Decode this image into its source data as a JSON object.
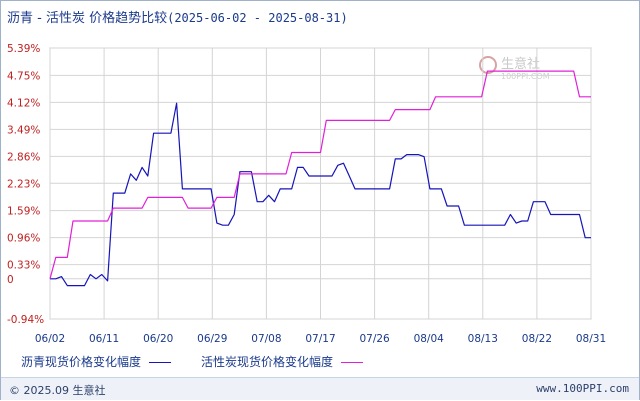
{
  "header": {
    "title": "沥青 - 活性炭 价格趋势比较",
    "range": "(2025-06-02 - 2025-08-31)"
  },
  "watermark": {
    "name": "生意社",
    "url": "100PPI.COM"
  },
  "footer": {
    "copyright": "© 2025.09 生意社",
    "site": "www.100PPI.com"
  },
  "colors": {
    "series1": "#1515b8",
    "series2": "#e020d8",
    "grid": "#cfcfcf",
    "axis_text": "#c02020",
    "xtick_text": "#1a3a8a"
  },
  "chart_data": {
    "type": "line",
    "title": "沥青 - 活性炭 价格趋势比较",
    "ylim": [
      -0.94,
      5.39
    ],
    "ylabel_unit": "%",
    "grid": true,
    "legend_position": "bottom",
    "x_range": [
      "2025-06-02",
      "2025-08-31"
    ],
    "x_ticks": [
      "06/02",
      "06/11",
      "06/20",
      "06/29",
      "07/08",
      "07/17",
      "07/26",
      "08/04",
      "08/13",
      "08/22",
      "08/31"
    ],
    "y_ticks": [
      "5.39%",
      "4.75%",
      "4.12%",
      "3.49%",
      "2.86%",
      "2.23%",
      "1.59%",
      "0.96%",
      "0.33%",
      "0",
      "-0.94%"
    ],
    "y_tick_values": [
      5.39,
      4.75,
      4.12,
      3.49,
      2.86,
      2.23,
      1.59,
      0.96,
      0.33,
      0,
      -0.94
    ],
    "series": [
      {
        "name": "沥青现货价格变化幅度",
        "color": "#1515b8",
        "points": [
          [
            0,
            0
          ],
          [
            1,
            0
          ],
          [
            2,
            0.05
          ],
          [
            3,
            -0.16
          ],
          [
            4,
            -0.16
          ],
          [
            5,
            -0.16
          ],
          [
            6,
            -0.16
          ],
          [
            7,
            0.1
          ],
          [
            8,
            0
          ],
          [
            9,
            0.1
          ],
          [
            10,
            -0.05
          ],
          [
            11,
            2.0
          ],
          [
            12,
            2.0
          ],
          [
            13,
            2.0
          ],
          [
            14,
            2.45
          ],
          [
            15,
            2.3
          ],
          [
            16,
            2.6
          ],
          [
            17,
            2.4
          ],
          [
            18,
            3.4
          ],
          [
            19,
            3.4
          ],
          [
            20,
            3.4
          ],
          [
            21,
            3.4
          ],
          [
            22,
            4.1
          ],
          [
            23,
            2.1
          ],
          [
            24,
            2.1
          ],
          [
            25,
            2.1
          ],
          [
            26,
            2.1
          ],
          [
            27,
            2.1
          ],
          [
            28,
            2.1
          ],
          [
            29,
            1.3
          ],
          [
            30,
            1.25
          ],
          [
            31,
            1.25
          ],
          [
            32,
            1.5
          ],
          [
            33,
            2.5
          ],
          [
            34,
            2.5
          ],
          [
            35,
            2.5
          ],
          [
            36,
            1.8
          ],
          [
            37,
            1.8
          ],
          [
            38,
            1.95
          ],
          [
            39,
            1.8
          ],
          [
            40,
            2.1
          ],
          [
            41,
            2.1
          ],
          [
            42,
            2.1
          ],
          [
            43,
            2.6
          ],
          [
            44,
            2.6
          ],
          [
            45,
            2.4
          ],
          [
            46,
            2.4
          ],
          [
            47,
            2.4
          ],
          [
            48,
            2.4
          ],
          [
            49,
            2.4
          ],
          [
            50,
            2.65
          ],
          [
            51,
            2.7
          ],
          [
            52,
            2.4
          ],
          [
            53,
            2.1
          ],
          [
            54,
            2.1
          ],
          [
            55,
            2.1
          ],
          [
            56,
            2.1
          ],
          [
            57,
            2.1
          ],
          [
            58,
            2.1
          ],
          [
            59,
            2.1
          ],
          [
            60,
            2.8
          ],
          [
            61,
            2.8
          ],
          [
            62,
            2.9
          ],
          [
            63,
            2.9
          ],
          [
            64,
            2.9
          ],
          [
            65,
            2.85
          ],
          [
            66,
            2.1
          ],
          [
            67,
            2.1
          ],
          [
            68,
            2.1
          ],
          [
            69,
            1.7
          ],
          [
            70,
            1.7
          ],
          [
            71,
            1.7
          ],
          [
            72,
            1.25
          ],
          [
            73,
            1.25
          ],
          [
            74,
            1.25
          ],
          [
            75,
            1.25
          ],
          [
            76,
            1.25
          ],
          [
            77,
            1.25
          ],
          [
            78,
            1.25
          ],
          [
            79,
            1.25
          ],
          [
            80,
            1.5
          ],
          [
            81,
            1.3
          ],
          [
            82,
            1.35
          ],
          [
            83,
            1.35
          ],
          [
            84,
            1.8
          ],
          [
            85,
            1.8
          ],
          [
            86,
            1.8
          ],
          [
            87,
            1.5
          ],
          [
            88,
            1.5
          ],
          [
            89,
            1.5
          ],
          [
            90,
            1.5
          ],
          [
            91,
            1.5
          ],
          [
            92,
            1.5
          ],
          [
            93,
            0.96
          ],
          [
            94,
            0.96
          ]
        ]
      },
      {
        "name": "活性炭现货价格变化幅度",
        "color": "#e020d8",
        "points": [
          [
            0,
            0
          ],
          [
            1,
            0.5
          ],
          [
            2,
            0.5
          ],
          [
            3,
            0.5
          ],
          [
            4,
            1.35
          ],
          [
            5,
            1.35
          ],
          [
            6,
            1.35
          ],
          [
            7,
            1.35
          ],
          [
            8,
            1.35
          ],
          [
            9,
            1.35
          ],
          [
            10,
            1.35
          ],
          [
            11,
            1.65
          ],
          [
            12,
            1.65
          ],
          [
            13,
            1.65
          ],
          [
            14,
            1.65
          ],
          [
            15,
            1.65
          ],
          [
            16,
            1.65
          ],
          [
            17,
            1.9
          ],
          [
            18,
            1.9
          ],
          [
            19,
            1.9
          ],
          [
            20,
            1.9
          ],
          [
            21,
            1.9
          ],
          [
            22,
            1.9
          ],
          [
            23,
            1.9
          ],
          [
            24,
            1.65
          ],
          [
            25,
            1.65
          ],
          [
            26,
            1.65
          ],
          [
            27,
            1.65
          ],
          [
            28,
            1.65
          ],
          [
            29,
            1.9
          ],
          [
            30,
            1.9
          ],
          [
            31,
            1.9
          ],
          [
            32,
            1.9
          ],
          [
            33,
            2.45
          ],
          [
            34,
            2.45
          ],
          [
            35,
            2.45
          ],
          [
            36,
            2.45
          ],
          [
            37,
            2.45
          ],
          [
            38,
            2.45
          ],
          [
            39,
            2.45
          ],
          [
            40,
            2.45
          ],
          [
            41,
            2.45
          ],
          [
            42,
            2.95
          ],
          [
            43,
            2.95
          ],
          [
            44,
            2.95
          ],
          [
            45,
            2.95
          ],
          [
            46,
            2.95
          ],
          [
            47,
            2.95
          ],
          [
            48,
            3.7
          ],
          [
            49,
            3.7
          ],
          [
            50,
            3.7
          ],
          [
            51,
            3.7
          ],
          [
            52,
            3.7
          ],
          [
            53,
            3.7
          ],
          [
            54,
            3.7
          ],
          [
            55,
            3.7
          ],
          [
            56,
            3.7
          ],
          [
            57,
            3.7
          ],
          [
            58,
            3.7
          ],
          [
            59,
            3.7
          ],
          [
            60,
            3.95
          ],
          [
            61,
            3.95
          ],
          [
            62,
            3.95
          ],
          [
            63,
            3.95
          ],
          [
            64,
            3.95
          ],
          [
            65,
            3.95
          ],
          [
            66,
            3.95
          ],
          [
            67,
            4.25
          ],
          [
            68,
            4.25
          ],
          [
            69,
            4.25
          ],
          [
            70,
            4.25
          ],
          [
            71,
            4.25
          ],
          [
            72,
            4.25
          ],
          [
            73,
            4.25
          ],
          [
            74,
            4.25
          ],
          [
            75,
            4.25
          ],
          [
            76,
            4.85
          ],
          [
            77,
            4.85
          ],
          [
            78,
            4.85
          ],
          [
            79,
            4.85
          ],
          [
            80,
            4.85
          ],
          [
            81,
            4.85
          ],
          [
            82,
            4.85
          ],
          [
            83,
            4.85
          ],
          [
            84,
            4.85
          ],
          [
            85,
            4.85
          ],
          [
            86,
            4.85
          ],
          [
            87,
            4.85
          ],
          [
            88,
            4.85
          ],
          [
            89,
            4.85
          ],
          [
            90,
            4.85
          ],
          [
            91,
            4.85
          ],
          [
            92,
            4.25
          ],
          [
            93,
            4.25
          ],
          [
            94,
            4.25
          ]
        ]
      }
    ]
  }
}
